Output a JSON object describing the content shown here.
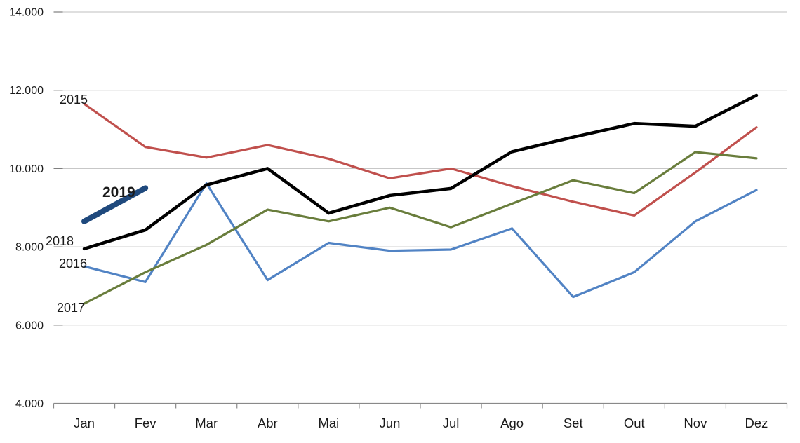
{
  "chart_data": {
    "type": "line",
    "title": "",
    "xlabel": "",
    "ylabel": "",
    "grid": "horizontal",
    "legend": "inline-labels-at-line-start",
    "categories": [
      "Jan",
      "Fev",
      "Mar",
      "Abr",
      "Mai",
      "Jun",
      "Jul",
      "Ago",
      "Set",
      "Out",
      "Nov",
      "Dez"
    ],
    "y_axis": {
      "min": 4000,
      "max": 14000,
      "step": 2000,
      "tick_labels": [
        "14.000",
        "12.000",
        "10.000",
        "8.000",
        "6.000",
        "4.000"
      ]
    },
    "series": [
      {
        "name": "2015",
        "color": "#C0504D",
        "stroke_width": 3.2,
        "values": [
          11650,
          10550,
          10280,
          10600,
          10250,
          9750,
          10000,
          9550,
          9150,
          8800,
          9900,
          11050
        ]
      },
      {
        "name": "2016",
        "color": "#5183C4",
        "stroke_width": 3.2,
        "values": [
          7500,
          7100,
          9620,
          7150,
          8100,
          7900,
          7930,
          8470,
          6720,
          7350,
          8650,
          9450
        ]
      },
      {
        "name": "2017",
        "color": "#697D3C",
        "stroke_width": 3.2,
        "values": [
          6550,
          7350,
          8050,
          8950,
          8650,
          9000,
          8500,
          9100,
          9700,
          9370,
          10420,
          10260
        ]
      },
      {
        "name": "2018",
        "color": "#000000",
        "stroke_width": 4.5,
        "values": [
          7950,
          8430,
          9580,
          10000,
          8860,
          9310,
          9490,
          10430,
          10800,
          11150,
          11080,
          11870
        ]
      },
      {
        "name": "2019",
        "color": "#1F497D",
        "stroke_width": 8,
        "values": [
          8650,
          9500
        ]
      }
    ],
    "colors": {
      "gridline": "#BFBFBF",
      "axis": "#898989",
      "tick": "#7F7F7F",
      "label_text": "#1a1a1a"
    }
  }
}
